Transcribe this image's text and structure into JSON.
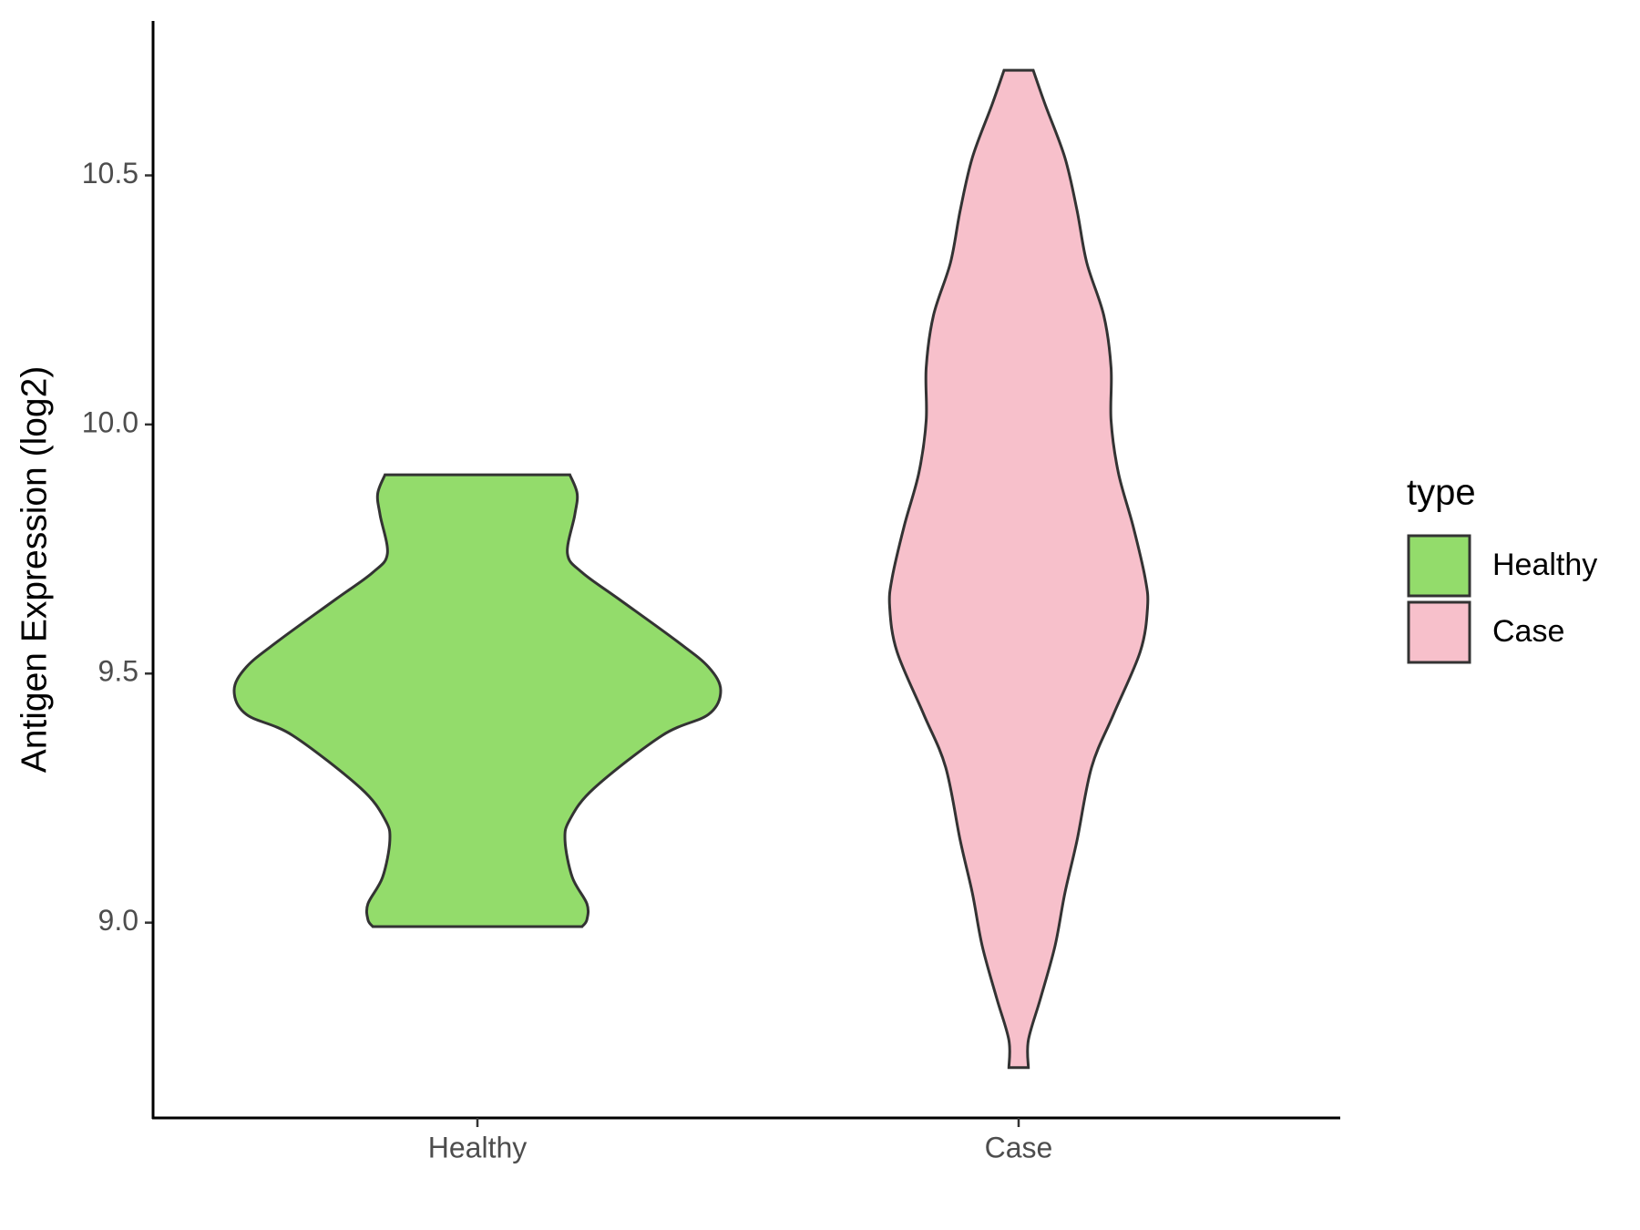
{
  "chart_data": {
    "type": "violin",
    "y_label": "Antigen Expression (log2)",
    "categories": [
      "Healthy",
      "Case"
    ],
    "legend_title": "type",
    "ylim": [
      8.608,
      10.81
    ],
    "yticks": [
      {
        "value": 9,
        "label": "9.0"
      },
      9.5,
      {
        "value": 10,
        "label": "10.0"
      },
      10.5
    ],
    "series": [
      {
        "name": "Healthy",
        "color": "#93dc6b",
        "y": [
          9.899,
          9.861,
          9.818,
          9.741,
          9.703,
          9.65,
          9.565,
          9.513,
          9.466,
          9.418,
          9.376,
          9.27,
          9.207,
          9.165,
          9.091,
          9.038,
          9.006,
          8.992
        ],
        "density": [
          0.38,
          0.41,
          0.4,
          0.37,
          0.43,
          0.58,
          0.82,
          0.95,
          1,
          0.95,
          0.76,
          0.48,
          0.38,
          0.36,
          0.39,
          0.45,
          0.45,
          0.43
        ]
      },
      {
        "name": "Case",
        "color": "#f7c0cb",
        "y": [
          10.711,
          10.641,
          10.536,
          10.43,
          10.325,
          10.219,
          10.114,
          10.008,
          9.903,
          9.797,
          9.692,
          9.633,
          9.544,
          9.418,
          9.312,
          9.165,
          9.059,
          8.954,
          8.848,
          8.764,
          8.709
        ],
        "density": [
          0.06,
          0.11,
          0.19,
          0.24,
          0.28,
          0.35,
          0.38,
          0.38,
          0.41,
          0.47,
          0.52,
          0.53,
          0.5,
          0.39,
          0.3,
          0.24,
          0.19,
          0.15,
          0.09,
          0.04,
          0.04
        ]
      }
    ]
  }
}
